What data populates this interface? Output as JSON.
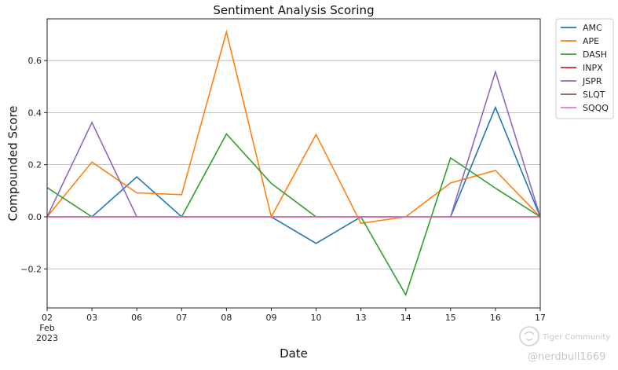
{
  "chart_data": {
    "type": "line",
    "title": "Sentiment Analysis Scoring",
    "xlabel": "Date",
    "ylabel": "Compounded Score",
    "x": [
      "02",
      "03",
      "06",
      "07",
      "08",
      "09",
      "10",
      "13",
      "14",
      "15",
      "16",
      "17"
    ],
    "x_sub": [
      "Feb",
      "2023"
    ],
    "ylim": [
      -0.35,
      0.76
    ],
    "yticks": [
      -0.2,
      0.0,
      0.2,
      0.4,
      0.6
    ],
    "ytick_labels": [
      "−0.2",
      "0.0",
      "0.2",
      "0.4",
      "0.6"
    ],
    "grid": "horizontal",
    "legend_position": "outside-top-right",
    "series": [
      {
        "name": "AMC",
        "color": "#1f77b4",
        "values": [
          0,
          0,
          0.153,
          0,
          0,
          0,
          -0.102,
          0,
          0,
          0,
          0.42,
          0
        ]
      },
      {
        "name": "APE",
        "color": "#ff7f0e",
        "values": [
          0,
          0.21,
          0.092,
          0.085,
          0.71,
          0,
          0.316,
          -0.025,
          0,
          0.13,
          0.178,
          0
        ]
      },
      {
        "name": "DASH",
        "color": "#2ca02c",
        "values": [
          0.112,
          0,
          0,
          0,
          0.318,
          0.128,
          0,
          0,
          -0.3,
          0.226,
          0.11,
          0
        ]
      },
      {
        "name": "INPX",
        "color": "#d62728",
        "values": [
          0,
          0,
          0,
          0,
          0,
          0,
          0,
          0,
          0,
          0,
          0,
          0
        ]
      },
      {
        "name": "JSPR",
        "color": "#9467bd",
        "values": [
          0,
          0.362,
          0,
          0,
          0,
          0,
          0,
          0,
          0,
          0,
          0.557,
          0
        ]
      },
      {
        "name": "SLQT",
        "color": "#8c564b",
        "values": [
          0,
          0,
          0,
          0,
          0,
          0,
          0,
          0,
          0,
          0,
          0,
          0
        ]
      },
      {
        "name": "SQQQ",
        "color": "#e377c2",
        "values": [
          0,
          0,
          0,
          0,
          0,
          0,
          0,
          0,
          0,
          0,
          0,
          0
        ]
      }
    ]
  },
  "watermark": {
    "brand": "Tiger Community",
    "user": "@nerdbull1669"
  }
}
